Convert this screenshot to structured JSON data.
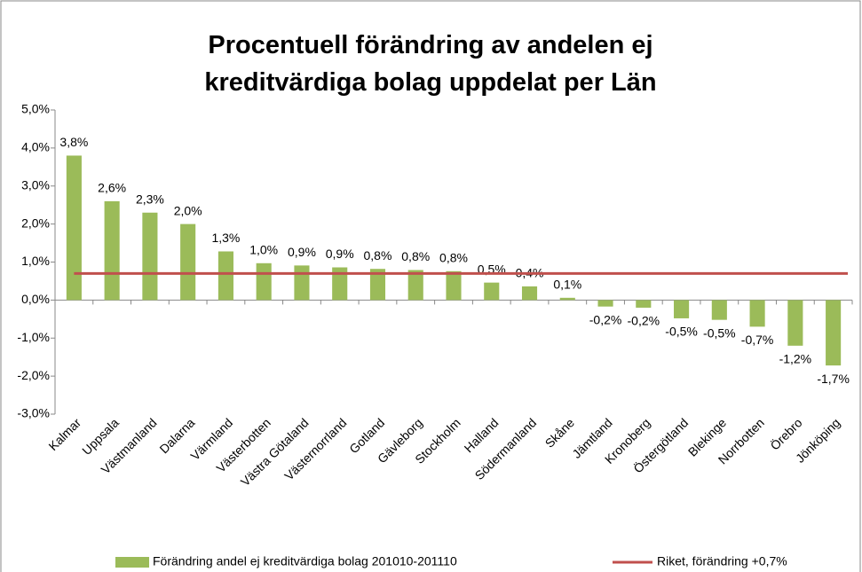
{
  "chart_data": {
    "type": "bar",
    "title": "Procentuell förändring av andelen ej kreditvärdiga bolag uppdelat per Län",
    "categories": [
      "Kalmar",
      "Uppsala",
      "Västmanland",
      "Dalarna",
      "Värmland",
      "Västerbotten",
      "Västra Götaland",
      "Västernorrland",
      "Gotland",
      "Gävleborg",
      "Stockholm",
      "Halland",
      "Södermanland",
      "Skåne",
      "Jämtland",
      "Kronoberg",
      "Östergötland",
      "Blekinge",
      "Norrbotten",
      "Örebro",
      "Jönköping"
    ],
    "series": [
      {
        "name": "Förändring andel ej kreditvärdiga bolag 201010-201110",
        "color": "#9bbb59",
        "values": [
          3.8,
          2.6,
          2.3,
          2.0,
          1.28,
          0.97,
          0.91,
          0.86,
          0.82,
          0.79,
          0.76,
          0.46,
          0.36,
          0.06,
          -0.17,
          -0.2,
          -0.48,
          -0.52,
          -0.7,
          -1.2,
          -1.72
        ],
        "value_labels": [
          "3,8%",
          "2,6%",
          "2,3%",
          "2,0%",
          "1,3%",
          "1,0%",
          "0,9%",
          "0,9%",
          "0,8%",
          "0,8%",
          "0,8%",
          "0,5%",
          "0,4%",
          "0,1%",
          "-0,2%",
          "-0,2%",
          "-0,5%",
          "-0,5%",
          "-0,7%",
          "-1,2%",
          "-1,7%"
        ]
      },
      {
        "name": "Riket, förändring +0,7%",
        "color": "#c0504d",
        "type": "line",
        "value": 0.7
      }
    ],
    "ylim": [
      -3,
      5
    ],
    "yticks": [
      {
        "value": -3,
        "label": "-3,0%"
      },
      {
        "value": -2,
        "label": "-2,0%"
      },
      {
        "value": -1,
        "label": "-1,0%"
      },
      {
        "value": 0,
        "label": "0,0%"
      },
      {
        "value": 1,
        "label": "1,0%"
      },
      {
        "value": 2,
        "label": "2,0%"
      },
      {
        "value": 3,
        "label": "3,0%"
      },
      {
        "value": 4,
        "label": "4,0%"
      },
      {
        "value": 5,
        "label": "5,0%"
      }
    ],
    "legend": "bottom"
  }
}
